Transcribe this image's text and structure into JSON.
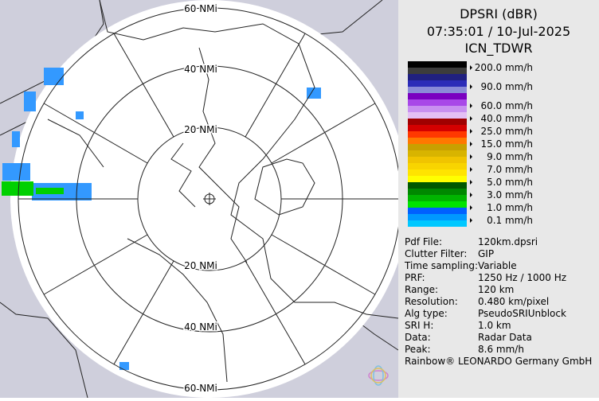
{
  "header": {
    "title": "DPSRI (dBR)",
    "datetime": "07:35:01 / 10-Jul-2025",
    "site": "ICN_TDWR"
  },
  "map": {
    "ring_labels": [
      "60 NMi",
      "40 NMi",
      "20 NMi",
      "20 NMi",
      "40 NMi",
      "60 NMi"
    ]
  },
  "legend": [
    {
      "label": "200.0 mm/h",
      "colors": [
        "#000000",
        "#3c3c3c"
      ]
    },
    {
      "label": "90.0 mm/h",
      "colors": [
        "#202080",
        "#2c2cb8",
        "#8a8ad8"
      ]
    },
    {
      "label": "60.0 mm/h",
      "colors": [
        "#7a00c0",
        "#a848e8"
      ]
    },
    {
      "label": "40.0 mm/h",
      "colors": [
        "#c890f0",
        "#e4c0f4"
      ]
    },
    {
      "label": "25.0 mm/h",
      "colors": [
        "#a00000",
        "#d40000"
      ]
    },
    {
      "label": "15.0 mm/h",
      "colors": [
        "#ff3800",
        "#ff7800"
      ]
    },
    {
      "label": "9.0 mm/h",
      "colors": [
        "#c8a000",
        "#d8b400"
      ]
    },
    {
      "label": "7.0 mm/h",
      "colors": [
        "#f0c400",
        "#f8d400"
      ]
    },
    {
      "label": "5.0 mm/h",
      "colors": [
        "#ffe400",
        "#ffff00"
      ]
    },
    {
      "label": "3.0 mm/h",
      "colors": [
        "#005800",
        "#008800"
      ]
    },
    {
      "label": "1.0 mm/h",
      "colors": [
        "#00b400",
        "#00e400"
      ]
    },
    {
      "label": "0.1 mm/h",
      "colors": [
        "#0060ff",
        "#0098ff",
        "#00c8ff"
      ]
    }
  ],
  "info": [
    [
      "Pdf File:",
      "120km.dpsri"
    ],
    [
      "Clutter Filter:",
      "GIP"
    ],
    [
      "Time sampling:",
      "Variable"
    ],
    [
      "PRF:",
      "1250 Hz / 1000 Hz"
    ],
    [
      "Range:",
      "120 km"
    ],
    [
      "Resolution:",
      "0.480 km/pixel"
    ],
    [
      "Alg type:",
      "PseudoSRIUnblock"
    ],
    [
      "SRI H:",
      "1.0 km"
    ],
    [
      "Data:",
      "Radar Data"
    ],
    [
      "Peak:",
      "8.6 mm/h"
    ]
  ],
  "footer": "Rainbow® LEONARDO Germany GmbH"
}
